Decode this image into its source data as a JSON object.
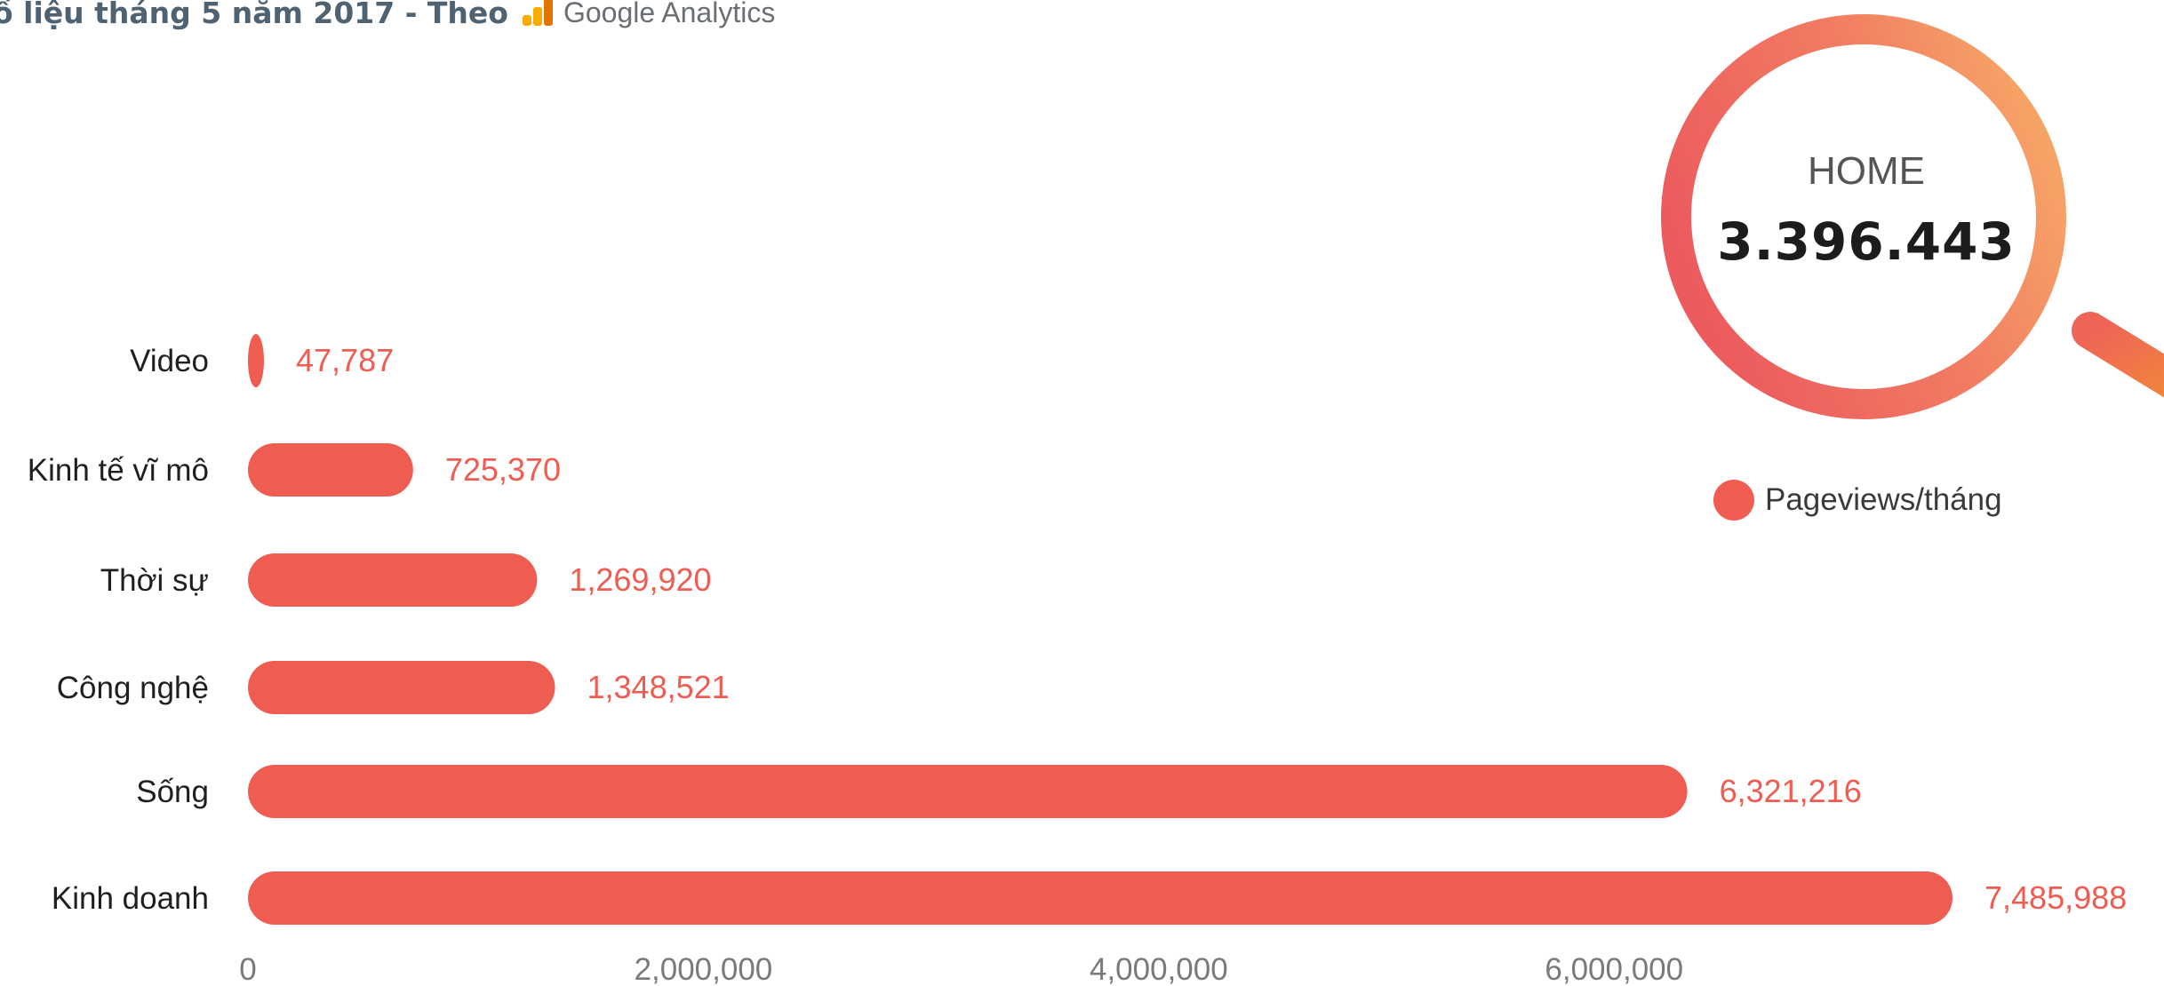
{
  "header": {
    "text": "ố liệu tháng 5 năm 2017 - Theo",
    "brand": "Google Analytics"
  },
  "home": {
    "label": "HOME",
    "value": "3.396.443"
  },
  "legend": {
    "label": "Pageviews/tháng"
  },
  "colors": {
    "bar": "#ef5c52",
    "value_label": "#ef5c52",
    "ring_start": "#ec5a5d",
    "ring_end": "#f7a867",
    "header_text": "#4f6272"
  },
  "icons": [
    "google-analytics-icon",
    "magnifier-ring-icon"
  ],
  "chart_data": {
    "type": "bar",
    "orientation": "horizontal",
    "categories": [
      "Video",
      "Kinh tế vĩ mô",
      "Thời sự",
      "Công nghệ",
      "Sống",
      "Kinh doanh"
    ],
    "series": [
      {
        "name": "Pageviews/tháng",
        "values": [
          47787,
          725370,
          1269920,
          1348521,
          6321216,
          7485988
        ]
      }
    ],
    "value_labels": [
      "47,787",
      "725,370",
      "1,269,920",
      "1,348,521",
      "6,321,216",
      "7,485,988"
    ],
    "x_ticks": [
      0,
      2000000,
      4000000,
      6000000
    ],
    "x_tick_labels": [
      "0",
      "2,000,000",
      "4,000,000",
      "6,000,000"
    ],
    "xlim": [
      0,
      7485988
    ],
    "grid": false,
    "legend_position": "top-right"
  }
}
